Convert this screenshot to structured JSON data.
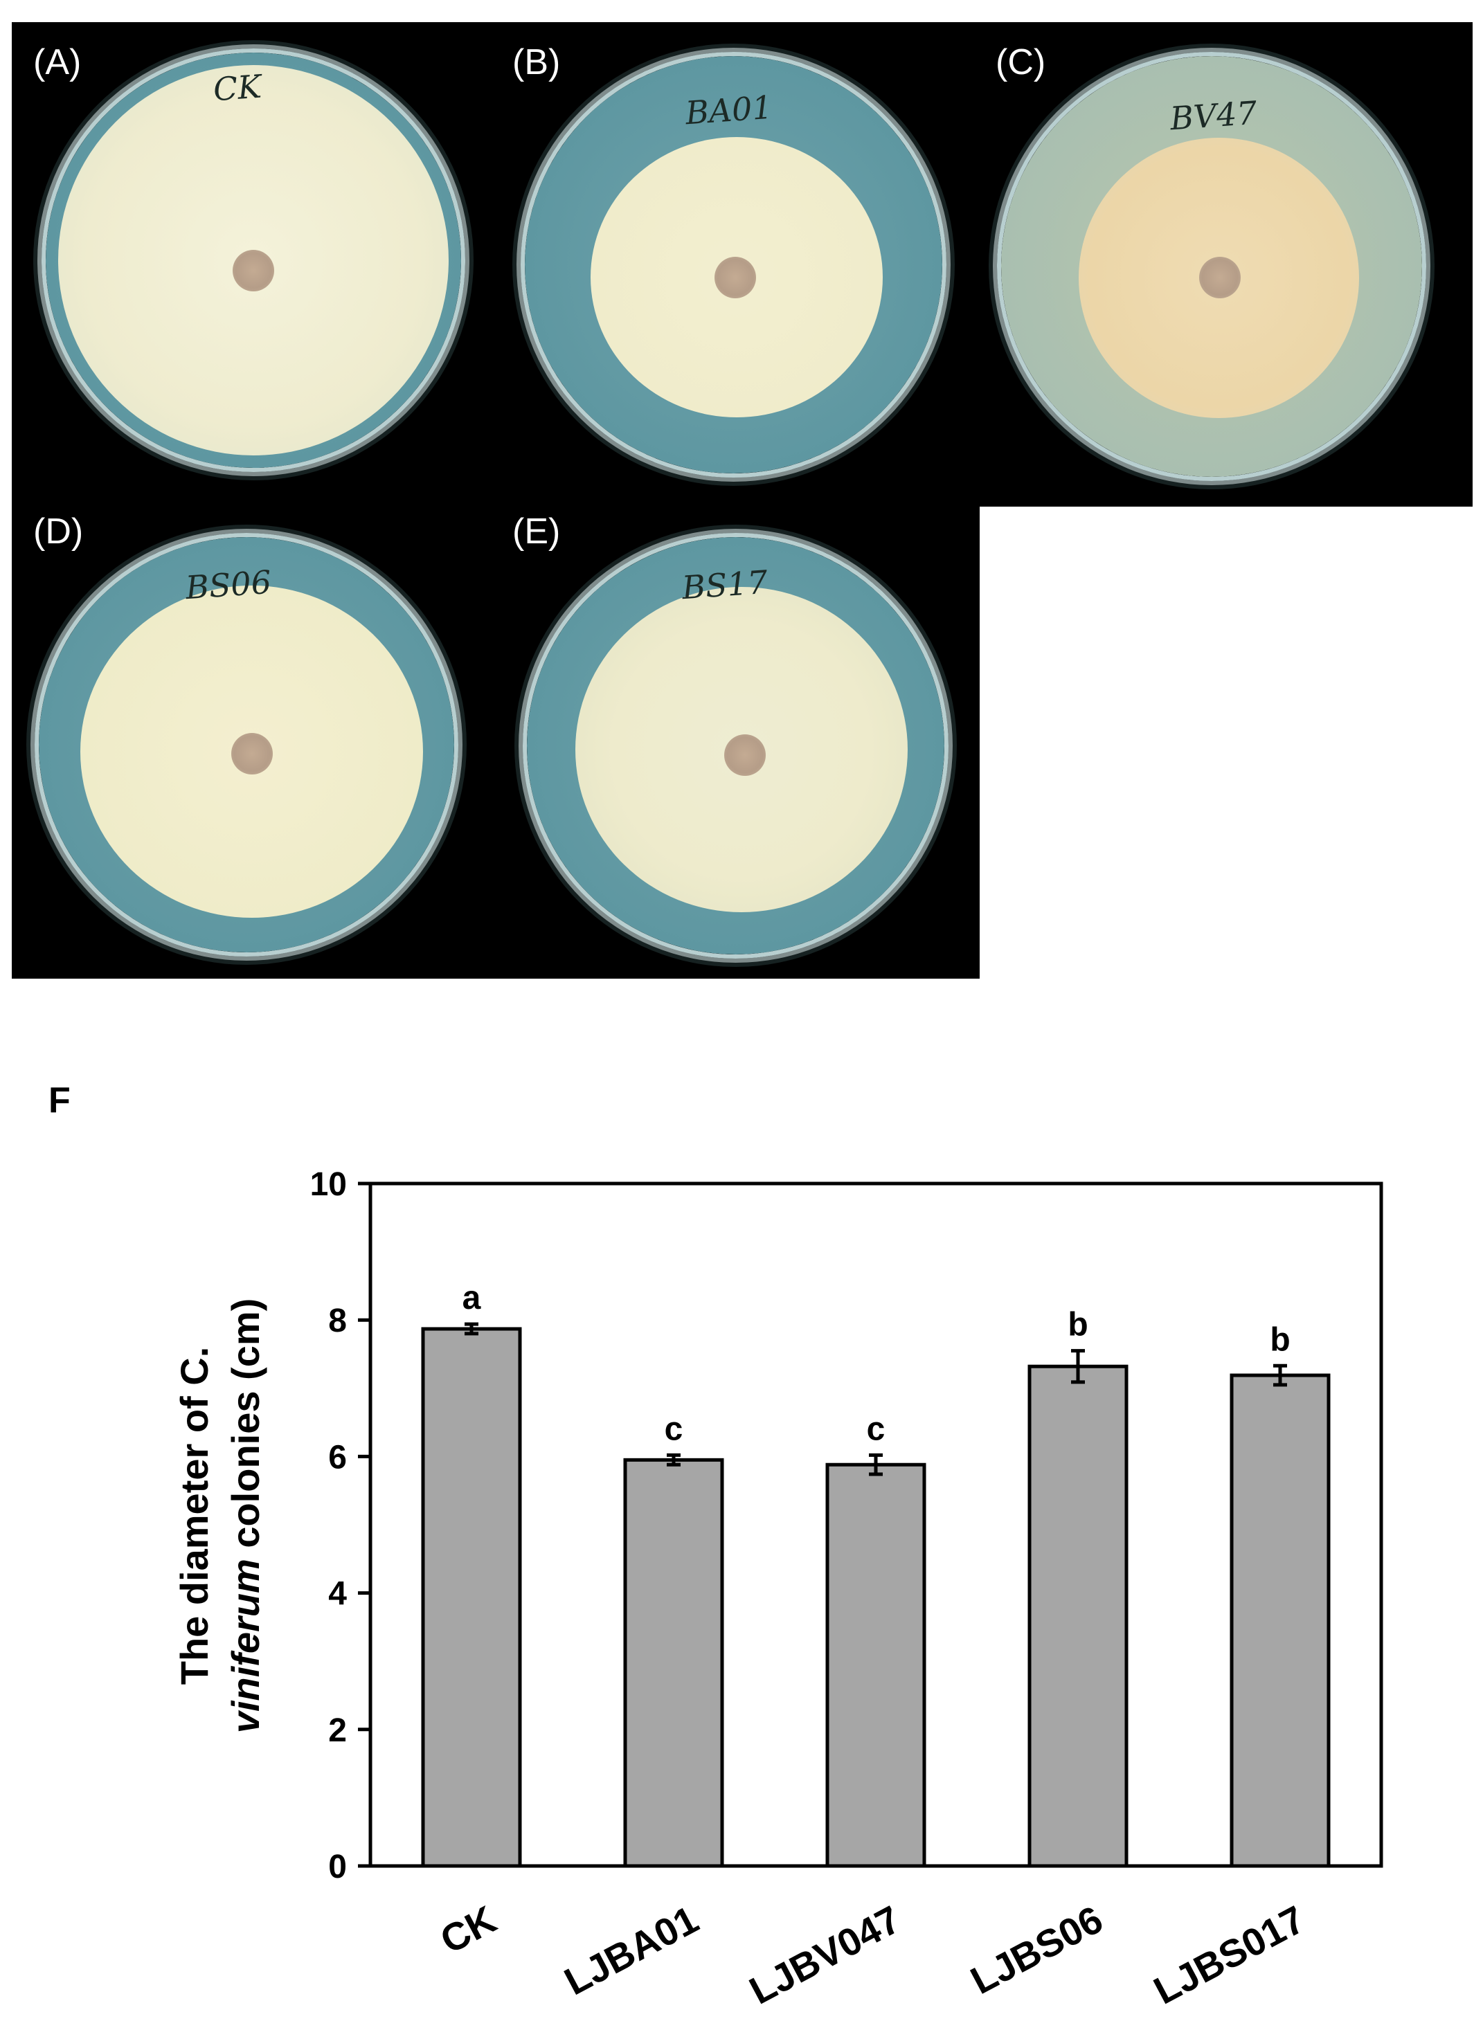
{
  "panels": [
    {
      "letter": "(A)",
      "label": "CK"
    },
    {
      "letter": "(B)",
      "label": "BA01"
    },
    {
      "letter": "(C)",
      "label": "BV47"
    },
    {
      "letter": "(D)",
      "label": "BS06"
    },
    {
      "letter": "(E)",
      "label": "BS17"
    }
  ],
  "figure_f_label": "F",
  "chart_data": {
    "type": "bar",
    "title": "",
    "categories": [
      "CK",
      "LJBA01",
      "LJBV047",
      "LJBS06",
      "LJBS017"
    ],
    "values": [
      7.87,
      5.95,
      5.88,
      7.32,
      7.19
    ],
    "errors": [
      0.07,
      0.07,
      0.14,
      0.23,
      0.14
    ],
    "significance": [
      "a",
      "c",
      "c",
      "b",
      "b"
    ],
    "ylabel_line1": "The diameter of C.",
    "ylabel_line2_italic": "viniferum",
    "ylabel_line2_rest": " colonies (cm)",
    "xlabel": "",
    "ylim": [
      0,
      10
    ],
    "yticks": [
      0,
      2,
      4,
      6,
      8,
      10
    ],
    "bar_color": "#a6a6a6"
  }
}
